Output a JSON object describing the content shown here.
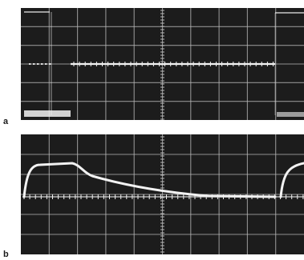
{
  "panels": [
    {
      "label": "a"
    },
    {
      "label": "b"
    }
  ],
  "colors": {
    "screen": "#1c1c1c",
    "grid": "#b8b8b8",
    "trace": "#f2f2f2"
  }
}
